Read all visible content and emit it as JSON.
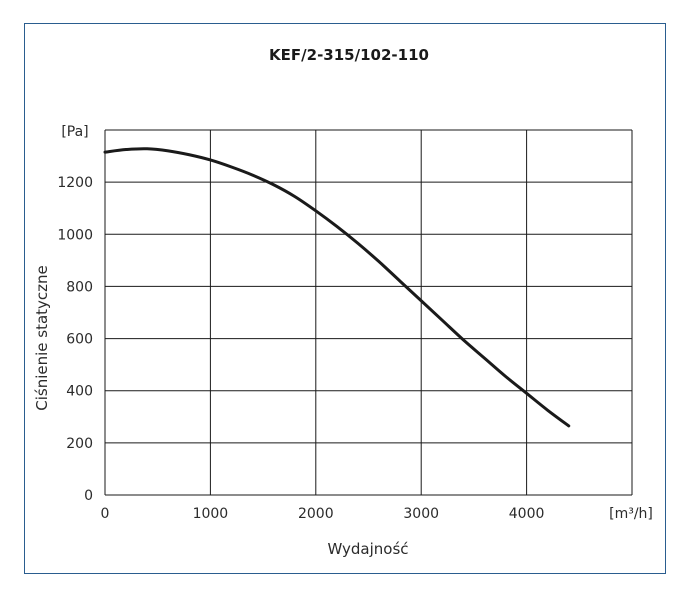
{
  "chart_data": {
    "type": "line",
    "title": "KEF/2-315/102-110",
    "xlabel": "Wydajność",
    "ylabel": "Ciśnienie statyczne",
    "x_unit": "[m³/h]",
    "y_unit": "[Pa]",
    "xlim": [
      0,
      5000
    ],
    "ylim": [
      0,
      1400
    ],
    "x_ticks": [
      0,
      1000,
      2000,
      3000,
      4000
    ],
    "y_ticks": [
      0,
      200,
      400,
      600,
      800,
      1000,
      1200
    ],
    "grid": true,
    "series": [
      {
        "x": [
          0,
          200,
          400,
          600,
          800,
          1000,
          1200,
          1400,
          1600,
          1800,
          2000,
          2200,
          2400,
          2600,
          2800,
          3000,
          3200,
          3400,
          3600,
          3800,
          4000,
          4200,
          4400
        ],
        "y": [
          1315,
          1325,
          1328,
          1320,
          1305,
          1285,
          1258,
          1227,
          1190,
          1145,
          1090,
          1030,
          965,
          895,
          820,
          745,
          670,
          595,
          525,
          455,
          390,
          325,
          265
        ]
      }
    ],
    "colors": {
      "line": "#1a1a1a",
      "grid": "#1a1a1a",
      "frame": "#2a5d8f"
    }
  }
}
